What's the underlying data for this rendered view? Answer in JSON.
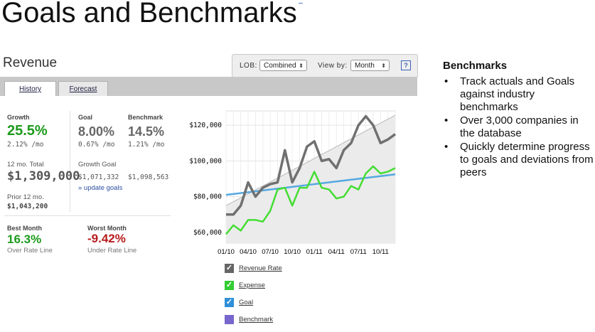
{
  "page_title": "Goals and Benchmarks",
  "revenue_title": "Revenue",
  "controls": {
    "lob_label": "LOB:",
    "lob_value": "Combined",
    "viewby_label": "View by:",
    "viewby_value": "Month",
    "help_label": "?"
  },
  "tabs": [
    {
      "label": "History",
      "active": true
    },
    {
      "label": "Forecast",
      "active": false
    }
  ],
  "stats": {
    "growth_label": "Growth",
    "growth_value": "25.5%",
    "growth_sub": "2.12% /mo",
    "goal_label": "Goal",
    "goal_value": "8.00%",
    "goal_sub": "0.67% /mo",
    "benchmark_label": "Benchmark",
    "benchmark_value": "14.5%",
    "benchmark_sub": "1.21% /mo",
    "total_label": "12 mo. Total",
    "total_value": "$1,309,000",
    "growth_goal_label": "Growth Goal",
    "growth_goal_value": "$1,071,332",
    "benchmark_goal_value": "$1,098,563",
    "update_goals_link": "» update goals",
    "prior_label": "Prior 12 mo.",
    "prior_value": "$1,043,200",
    "best_label": "Best Month",
    "best_value": "16.3%",
    "best_note": "Over Rate Line",
    "worst_label": "Worst Month",
    "worst_value": "-9.42%",
    "worst_note": "Under Rate Line"
  },
  "chart_data": {
    "type": "line",
    "x": [
      "01/10",
      "02/10",
      "03/10",
      "04/10",
      "05/10",
      "06/10",
      "07/10",
      "08/10",
      "09/10",
      "10/10",
      "11/10",
      "12/10",
      "01/11",
      "02/11",
      "03/11",
      "04/11",
      "05/11",
      "06/11",
      "07/11",
      "08/11",
      "09/11",
      "10/11",
      "11/11",
      "12/11"
    ],
    "x_tick_labels": [
      "01/10",
      "04/10",
      "07/10",
      "10/10",
      "01/11",
      "04/11",
      "07/11",
      "10/11"
    ],
    "y_tick_labels": [
      "$60,000",
      "$80,000",
      "$100,000",
      "$120,000"
    ],
    "ylim": [
      54000,
      128000
    ],
    "y_ticks": [
      60000,
      80000,
      100000,
      120000
    ],
    "series": [
      {
        "name": "Revenue Rate",
        "color": "#707070",
        "values": [
          70000,
          70000,
          75000,
          88000,
          80000,
          85000,
          87000,
          88000,
          106000,
          88000,
          96000,
          108000,
          111000,
          100000,
          101000,
          96000,
          106000,
          110000,
          120000,
          125000,
          120000,
          110000,
          112000,
          115000
        ]
      },
      {
        "name": "Expense",
        "color": "#44dd33",
        "values": [
          59000,
          64000,
          61000,
          67000,
          67000,
          66000,
          72000,
          84000,
          85000,
          75000,
          85000,
          85000,
          94000,
          85000,
          84000,
          79000,
          80000,
          86000,
          84000,
          93000,
          97000,
          93000,
          94000,
          96000
        ]
      },
      {
        "name": "Goal",
        "color": "#55a8e0",
        "values": [
          81000,
          81500,
          82000,
          82500,
          83000,
          83500,
          84000,
          84500,
          85000,
          85500,
          86000,
          86500,
          87000,
          87500,
          88000,
          88500,
          89000,
          89500,
          90000,
          90500,
          91000,
          91500,
          92000,
          92500
        ]
      },
      {
        "name": "Benchmark",
        "color": "#7766cc",
        "values": [
          75000,
          77200,
          79400,
          81600,
          83800,
          86000,
          88200,
          90400,
          92600,
          94800,
          97000,
          99200,
          101400,
          103600,
          105800,
          108000,
          110200,
          112400,
          114600,
          116800,
          119000,
          121200,
          123400,
          125600
        ]
      }
    ],
    "legend": [
      {
        "label": "Revenue Rate",
        "color": "#666666",
        "checked": true
      },
      {
        "label": "Expense",
        "color": "#33cc33",
        "checked": true
      },
      {
        "label": "Goal",
        "color": "#2f8fd8",
        "checked": true
      },
      {
        "label": "Benchmark",
        "color": "#7766cc",
        "checked": false
      }
    ]
  },
  "benchmarks": {
    "title": "Benchmarks",
    "items": [
      "Track actuals and Goals against industry benchmarks",
      "Over 3,000 companies in the database",
      "Quickly determine progress to goals and deviations from peers"
    ],
    "bullet": "•"
  }
}
